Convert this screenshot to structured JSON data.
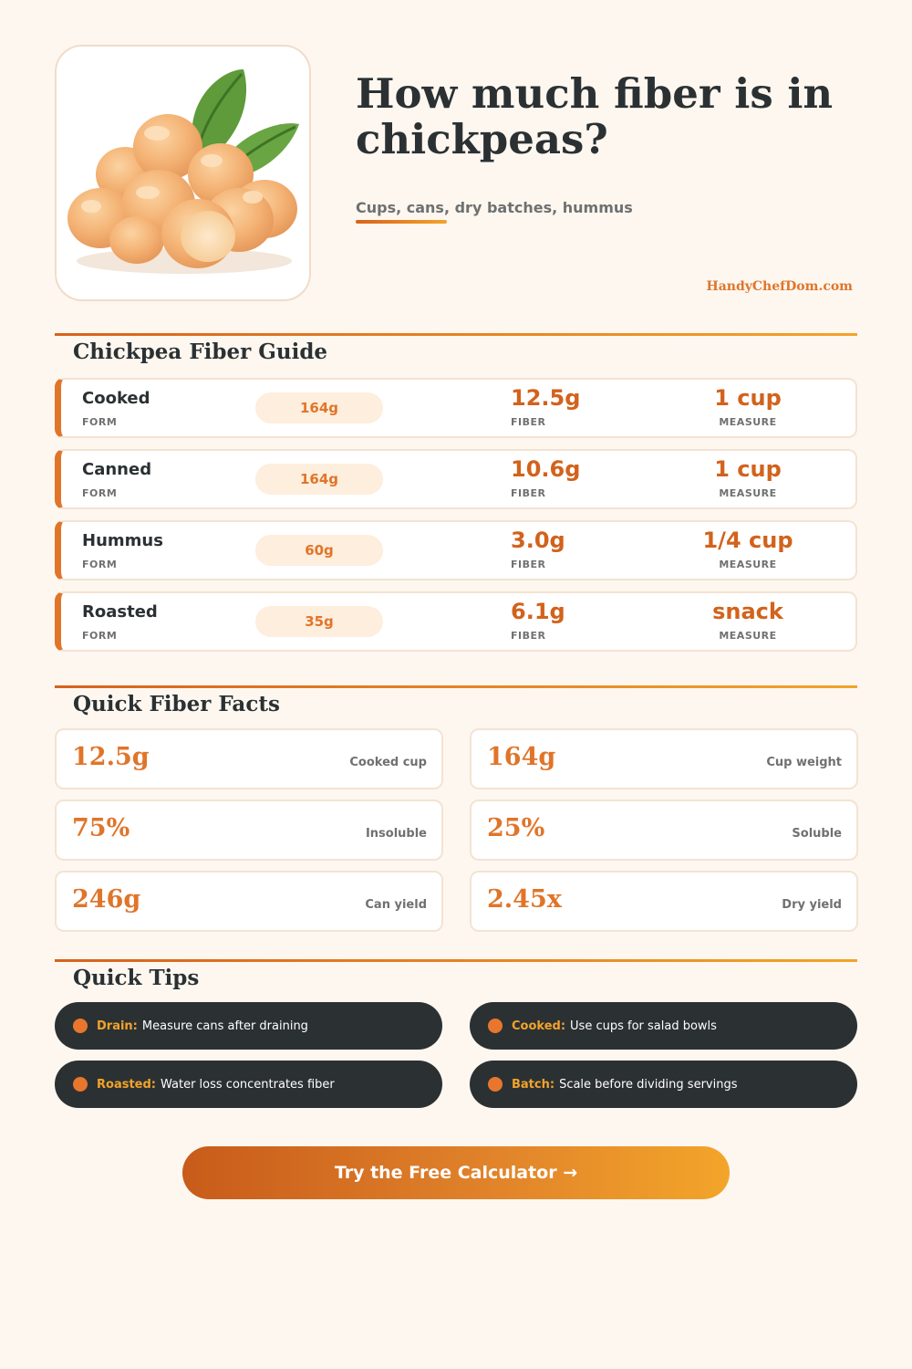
{
  "header": {
    "title": "How much fiber is in chickpeas?",
    "subtitle": "Cups, cans, dry batches, hummus",
    "brand": "HandyChefDom.com",
    "image_icon": "chickpeas-illustration"
  },
  "guide": {
    "title": "Chickpea Fiber Guide",
    "form_label": "FORM",
    "fiber_label": "FIBER",
    "measure_label": "MEASURE",
    "rows": [
      {
        "form": "Cooked",
        "weight": "164g",
        "fiber": "12.5g",
        "measure": "1 cup"
      },
      {
        "form": "Canned",
        "weight": "164g",
        "fiber": "10.6g",
        "measure": "1 cup"
      },
      {
        "form": "Hummus",
        "weight": "60g",
        "fiber": "3.0g",
        "measure": "1/4 cup"
      },
      {
        "form": "Roasted",
        "weight": "35g",
        "fiber": "6.1g",
        "measure": "snack"
      }
    ]
  },
  "facts": {
    "title": "Quick Fiber Facts",
    "items": [
      {
        "value": "12.5g",
        "label": "Cooked cup"
      },
      {
        "value": "164g",
        "label": "Cup weight"
      },
      {
        "value": "75%",
        "label": "Insoluble"
      },
      {
        "value": "25%",
        "label": "Soluble"
      },
      {
        "value": "246g",
        "label": "Can yield"
      },
      {
        "value": "2.45x",
        "label": "Dry yield"
      }
    ]
  },
  "tips": {
    "title": "Quick Tips",
    "items": [
      {
        "key": "Drain:",
        "text": "Measure cans after draining"
      },
      {
        "key": "Cooked:",
        "text": "Use cups for salad bowls"
      },
      {
        "key": "Roasted:",
        "text": "Water loss concentrates fiber"
      },
      {
        "key": "Batch:",
        "text": "Scale before dividing servings"
      }
    ]
  },
  "cta": {
    "label": "Try the Free Calculator →"
  },
  "colors": {
    "accent": "#e0752a",
    "accent_dark": "#d2621c",
    "accent_light": "#f3a32a",
    "dark": "#2b3133",
    "background": "#fdf7f0"
  }
}
